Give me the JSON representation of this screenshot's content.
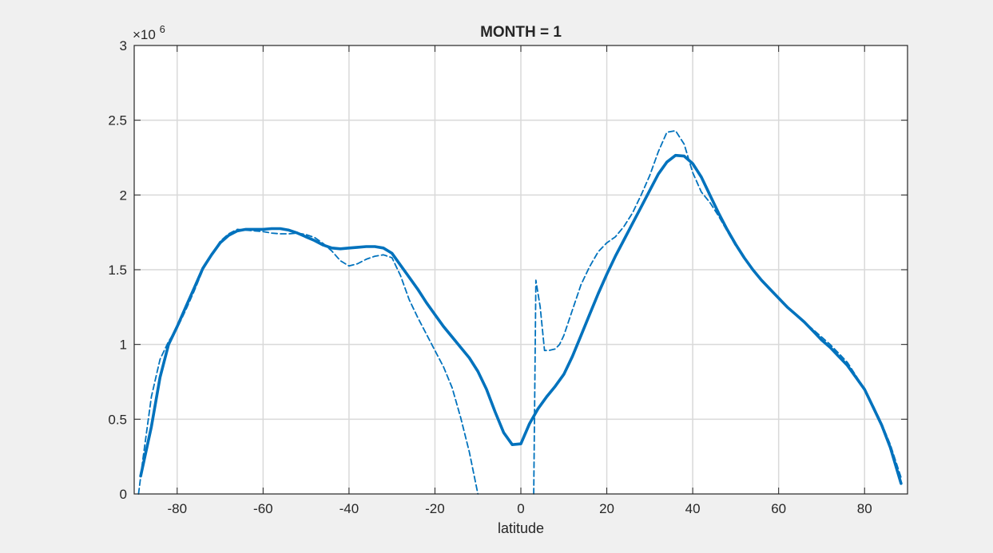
{
  "figure": {
    "background": "#f0f0f0",
    "axes_background": "#ffffff",
    "grid_color": "#d9d9d9",
    "line_color": "#0072bd"
  },
  "chart_data": {
    "type": "line",
    "title": "MONTH = 1",
    "xlabel": "latitude",
    "ylabel": "",
    "xlim": [
      -90,
      90
    ],
    "ylim": [
      0,
      3000000
    ],
    "y_exponent_label": "×10^6",
    "y_exponent": {
      "base": "×10",
      "power": "6"
    },
    "grid": true,
    "xticks": [
      -80,
      -60,
      -40,
      -20,
      0,
      20,
      40,
      60,
      80
    ],
    "xtick_labels": [
      "-80",
      "-60",
      "-40",
      "-20",
      "0",
      "20",
      "40",
      "60",
      "80"
    ],
    "yticks": [
      0,
      500000,
      1000000,
      1500000,
      2000000,
      2500000,
      3000000
    ],
    "ytick_labels": [
      "0",
      "0.5",
      "1",
      "1.5",
      "2",
      "2.5",
      "3"
    ],
    "series": [
      {
        "style": "solid",
        "x": [
          -88.5,
          -86,
          -84,
          -82,
          -80,
          -78,
          -76,
          -74,
          -72,
          -70,
          -68,
          -66,
          -64,
          -62,
          -60,
          -58,
          -56,
          -54,
          -52,
          -50,
          -48,
          -46,
          -44,
          -42,
          -40,
          -38,
          -36,
          -34,
          -32,
          -30,
          -28,
          -26,
          -24,
          -22,
          -20,
          -18,
          -16,
          -14,
          -12,
          -10,
          -8,
          -6,
          -4,
          -2,
          0,
          2,
          4,
          6,
          8,
          10,
          12,
          14,
          16,
          18,
          20,
          22,
          24,
          26,
          28,
          30,
          32,
          34,
          36,
          38,
          40,
          42,
          44,
          46,
          48,
          50,
          52,
          54,
          56,
          58,
          60,
          62,
          64,
          66,
          68,
          70,
          72,
          74,
          76,
          78,
          80,
          82,
          84,
          86,
          88.5
        ],
        "y": [
          120000,
          450000,
          780000,
          1000000,
          1120000,
          1250000,
          1380000,
          1510000,
          1600000,
          1680000,
          1730000,
          1760000,
          1770000,
          1770000,
          1770000,
          1775000,
          1775000,
          1765000,
          1745000,
          1720000,
          1695000,
          1665000,
          1645000,
          1640000,
          1645000,
          1650000,
          1655000,
          1655000,
          1645000,
          1610000,
          1530000,
          1450000,
          1370000,
          1280000,
          1200000,
          1120000,
          1050000,
          980000,
          910000,
          820000,
          700000,
          550000,
          410000,
          330000,
          335000,
          470000,
          570000,
          650000,
          720000,
          800000,
          920000,
          1060000,
          1200000,
          1340000,
          1470000,
          1590000,
          1700000,
          1810000,
          1920000,
          2030000,
          2140000,
          2220000,
          2265000,
          2260000,
          2210000,
          2120000,
          2000000,
          1880000,
          1770000,
          1670000,
          1580000,
          1500000,
          1430000,
          1370000,
          1310000,
          1250000,
          1200000,
          1150000,
          1090000,
          1030000,
          980000,
          920000,
          860000,
          780000,
          700000,
          580000,
          460000,
          310000,
          70000
        ]
      },
      {
        "style": "dashed",
        "x": [
          -89,
          -88,
          -86,
          -84,
          -82,
          -80,
          -78,
          -76,
          -74,
          -72,
          -70,
          -68,
          -66,
          -64,
          -62,
          -60,
          -58,
          -56,
          -54,
          -52,
          -50,
          -48,
          -46,
          -44,
          -42,
          -40,
          -38,
          -36,
          -34,
          -32,
          -30,
          -28,
          -26,
          -24,
          -22,
          -20,
          -18,
          -16,
          -14,
          -12,
          -10
        ],
        "y": [
          0,
          230000,
          650000,
          900000,
          1020000,
          1110000,
          1230000,
          1360000,
          1500000,
          1600000,
          1690000,
          1740000,
          1770000,
          1765000,
          1760000,
          1755000,
          1745000,
          1740000,
          1740000,
          1745000,
          1735000,
          1715000,
          1675000,
          1625000,
          1560000,
          1525000,
          1540000,
          1570000,
          1590000,
          1600000,
          1580000,
          1460000,
          1300000,
          1180000,
          1070000,
          960000,
          850000,
          710000,
          510000,
          280000,
          0
        ]
      },
      {
        "style": "dashed",
        "x": [
          3,
          3.5,
          4.5,
          5.5,
          6.5,
          8,
          9,
          10,
          12,
          14,
          16,
          18,
          20,
          22,
          24,
          26,
          28,
          30,
          32,
          34,
          36,
          38,
          40,
          42,
          44,
          46,
          48,
          50,
          52,
          54,
          56,
          58,
          60,
          62,
          64,
          66,
          68,
          70,
          72,
          74,
          76,
          78,
          80,
          82,
          84,
          86,
          88.5
        ],
        "y": [
          0,
          1430000,
          1250000,
          960000,
          960000,
          970000,
          1000000,
          1060000,
          1230000,
          1400000,
          1520000,
          1620000,
          1680000,
          1720000,
          1790000,
          1880000,
          2000000,
          2130000,
          2290000,
          2420000,
          2430000,
          2340000,
          2150000,
          2020000,
          1950000,
          1860000,
          1760000,
          1660000,
          1580000,
          1500000,
          1430000,
          1370000,
          1310000,
          1250000,
          1200000,
          1150000,
          1100000,
          1050000,
          1000000,
          940000,
          880000,
          790000,
          700000,
          590000,
          470000,
          330000,
          110000
        ]
      }
    ]
  }
}
